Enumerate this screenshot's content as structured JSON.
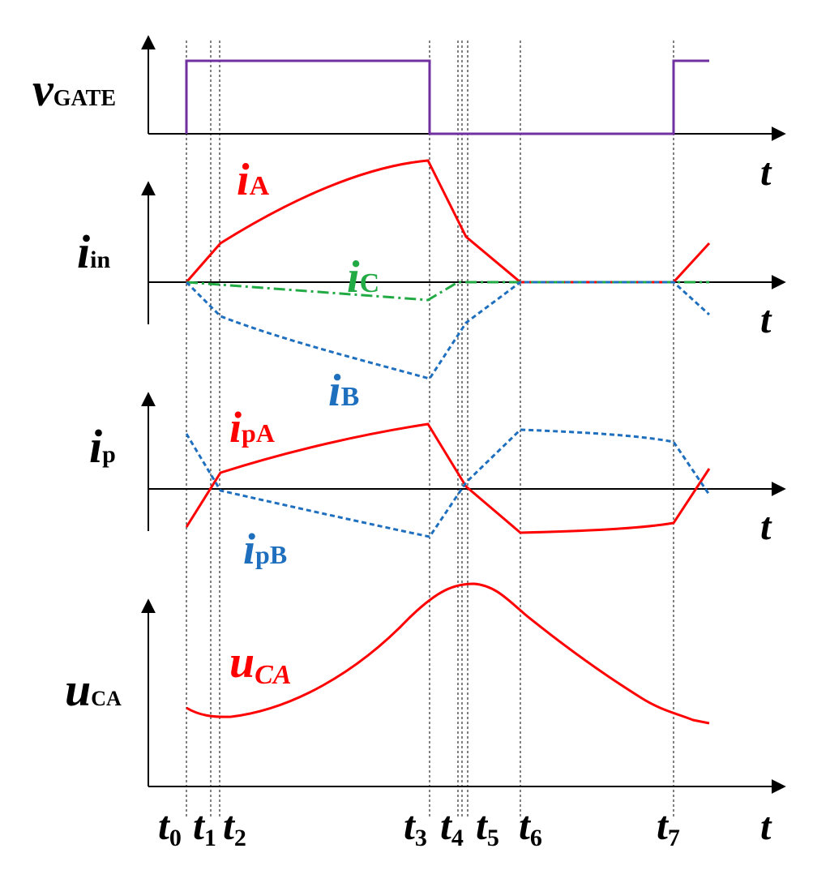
{
  "colors": {
    "gate": "#7030a0",
    "red": "#ff0000",
    "blue": "#1f6fbf",
    "green": "#22aa44",
    "black": "#000000"
  },
  "time_axis_label": "t",
  "time_markers": [
    {
      "letter": "t",
      "index": "0"
    },
    {
      "letter": "t",
      "index": "1"
    },
    {
      "letter": "t",
      "index": "2"
    },
    {
      "letter": "t",
      "index": "3"
    },
    {
      "letter": "t",
      "index": "4"
    },
    {
      "letter": "t",
      "index": "5"
    },
    {
      "letter": "t",
      "index": "6"
    },
    {
      "letter": "t",
      "index": "7"
    }
  ],
  "panels": [
    {
      "label_main": "v",
      "label_sub": "GATE"
    },
    {
      "label_main": "i",
      "label_sub": "in"
    },
    {
      "label_main": "i",
      "label_sub": "p"
    },
    {
      "label_main": "u",
      "label_sub": "CA"
    }
  ],
  "curve_labels": {
    "iA": {
      "main": "i",
      "sub": "A"
    },
    "iB": {
      "main": "i",
      "sub": "B"
    },
    "iC": {
      "main": "i",
      "sub": "C"
    },
    "ipA": {
      "main": "i",
      "sub": "pA"
    },
    "ipB": {
      "main": "i",
      "sub": "pB"
    },
    "uCA": {
      "main": "u",
      "sub": "CA"
    }
  }
}
